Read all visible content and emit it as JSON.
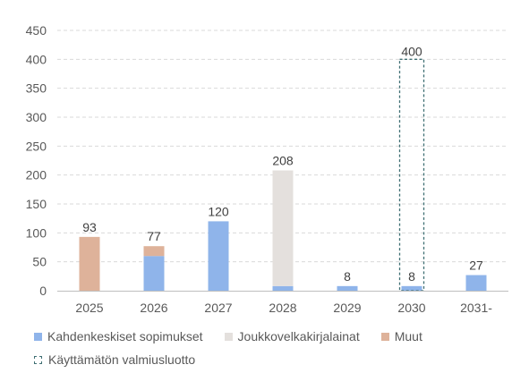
{
  "chart_data": {
    "type": "bar",
    "stacked": true,
    "categories": [
      "2025",
      "2026",
      "2027",
      "2028",
      "2029",
      "2030",
      "2031-"
    ],
    "ylim": [
      0,
      450
    ],
    "yticks": [
      0,
      50,
      100,
      150,
      200,
      250,
      300,
      350,
      400,
      450
    ],
    "grid": true,
    "legend_position": "bottom",
    "series": [
      {
        "name": "Kahdenkeskiset sopimukset",
        "color": "#8fb4ea",
        "values": [
          0,
          60,
          120,
          8,
          8,
          8,
          27
        ]
      },
      {
        "name": "Joukkovelkakirjalainat",
        "color": "#e4e0dd",
        "values": [
          0,
          0,
          0,
          200,
          0,
          0,
          0
        ]
      },
      {
        "name": "Muut",
        "color": "#deb29a",
        "values": [
          93,
          17,
          0,
          0,
          0,
          0,
          0
        ]
      }
    ],
    "totals": [
      93,
      77,
      120,
      208,
      8,
      8,
      27
    ],
    "unused_facility": {
      "name": "Käyttämätön valmiusluotto",
      "color": "#3f6f73",
      "category": "2030",
      "value": 400,
      "label": "400"
    }
  },
  "legend": {
    "items": [
      {
        "label": "Kahdenkeskiset sopimukset",
        "color": "#8fb4ea"
      },
      {
        "label": "Joukkovelkakirjalainat",
        "color": "#e4e0dd"
      },
      {
        "label": "Muut",
        "color": "#deb29a"
      }
    ],
    "dashed_label": "Käyttämätön valmiusluotto"
  }
}
